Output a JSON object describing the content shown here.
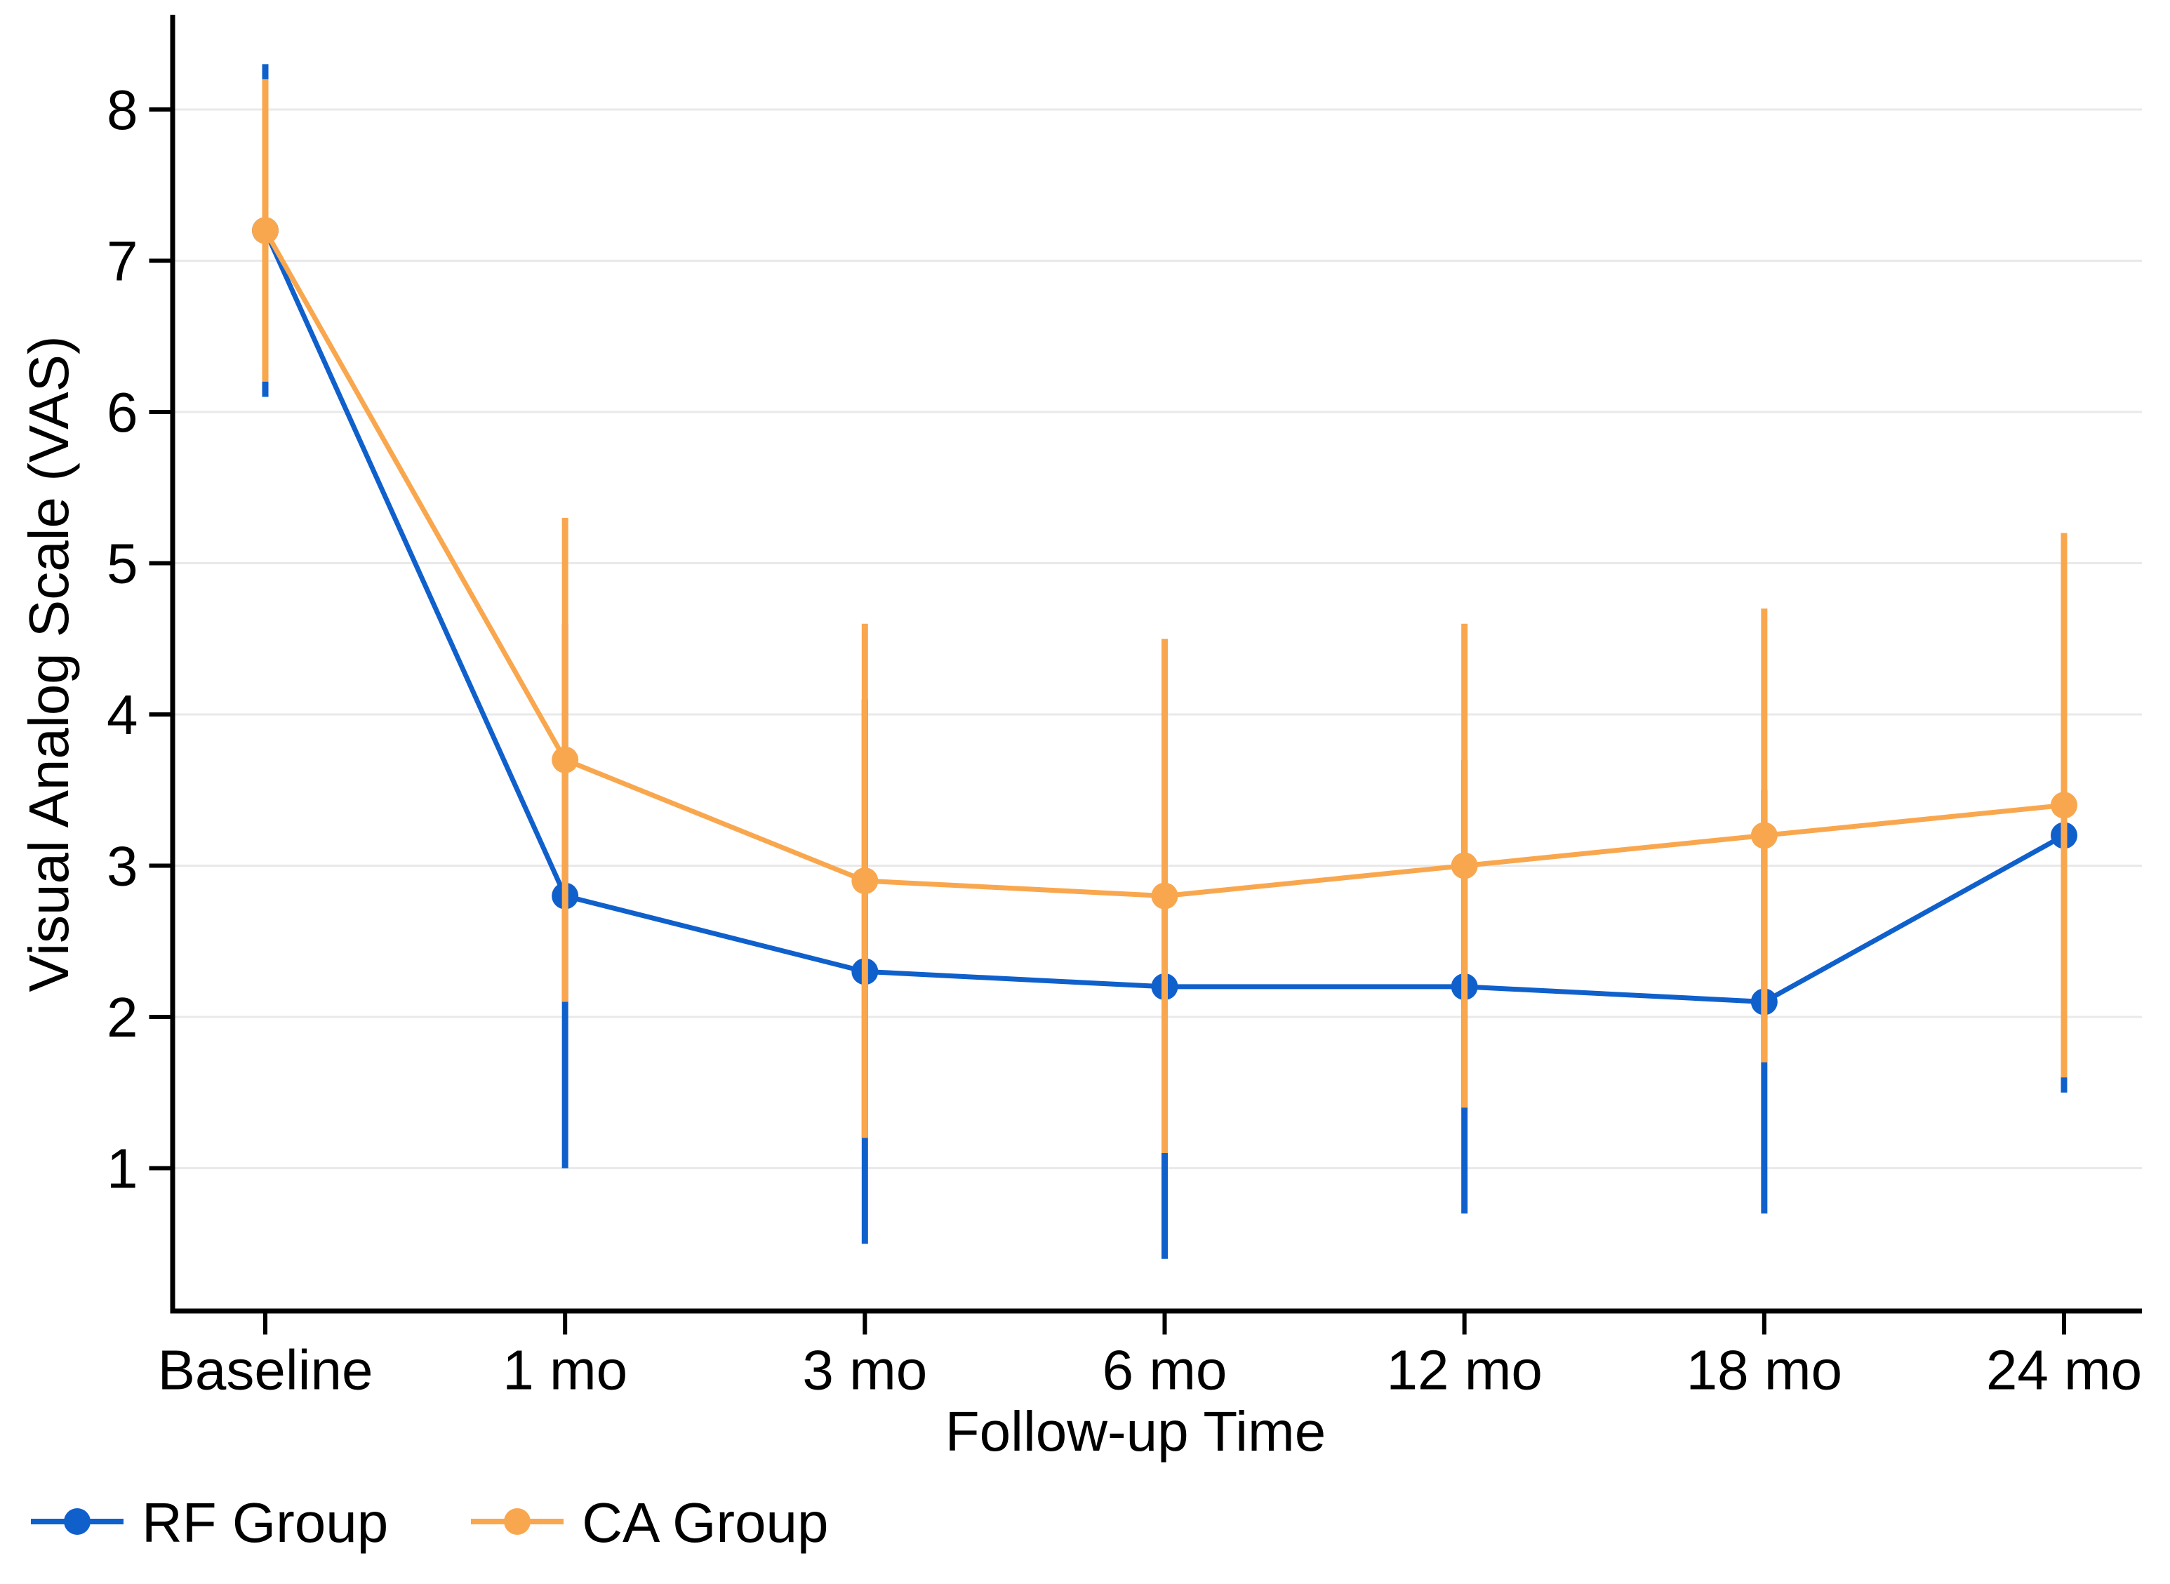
{
  "chart_data": {
    "type": "line",
    "title": "",
    "xlabel": "Follow-up Time",
    "ylabel": "Visual Analog Scale (VAS)",
    "categories": [
      "Baseline",
      "1 mo",
      "3 mo",
      "6 mo",
      "12 mo",
      "18 mo",
      "24 mo"
    ],
    "yticks": [
      1,
      2,
      3,
      4,
      5,
      6,
      7,
      8
    ],
    "ylim": [
      0.05,
      8.62
    ],
    "grid": true,
    "legend_position": "bottom-left",
    "series": [
      {
        "name": "RF Group",
        "color": "#1060CC",
        "marker": "circle",
        "values": [
          7.2,
          2.8,
          2.3,
          2.2,
          2.2,
          2.1,
          3.2
        ],
        "err_lower": [
          6.1,
          1.0,
          0.5,
          0.4,
          0.7,
          0.7,
          1.5
        ],
        "err_upper": [
          8.3,
          4.6,
          4.1,
          4.0,
          3.7,
          3.5,
          4.9
        ]
      },
      {
        "name": "CA Group",
        "color": "#F9A74E",
        "marker": "circle",
        "values": [
          7.2,
          3.7,
          2.9,
          2.8,
          3.0,
          3.2,
          3.4
        ],
        "err_lower": [
          6.2,
          2.1,
          1.2,
          1.1,
          1.4,
          1.7,
          1.6
        ],
        "err_upper": [
          8.2,
          5.3,
          4.6,
          4.5,
          4.6,
          4.7,
          5.2
        ]
      }
    ]
  },
  "colors": {
    "background": "#FFFFFF",
    "grid": "#E9E9E9",
    "axis": "#000000",
    "text": "#000000"
  }
}
